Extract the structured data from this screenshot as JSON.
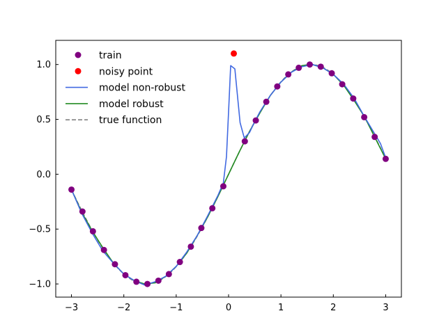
{
  "chart_data": {
    "type": "scatter",
    "title": "",
    "xlabel": "",
    "ylabel": "",
    "xlim": [
      -3.3,
      3.3
    ],
    "ylim": [
      -1.12,
      1.22
    ],
    "xticks": [
      -3,
      -2,
      -1,
      0,
      1,
      2,
      3
    ],
    "yticks": [
      -1.0,
      -0.5,
      0.0,
      0.5,
      1.0
    ],
    "xtick_labels": [
      "−3",
      "−2",
      "−1",
      "0",
      "1",
      "2",
      "3"
    ],
    "ytick_labels": [
      "−1.0",
      "−0.5",
      "0.0",
      "0.5",
      "1.0"
    ],
    "legend_position": "upper-left",
    "legend": [
      {
        "label": "train",
        "kind": "marker",
        "color": "#800080"
      },
      {
        "label": "noisy point",
        "kind": "marker",
        "color": "#ff0000"
      },
      {
        "label": "model non-robust",
        "kind": "line",
        "color": "#4169e1",
        "dash": "solid"
      },
      {
        "label": "model robust",
        "kind": "line",
        "color": "#228b22",
        "dash": "solid"
      },
      {
        "label": "true function",
        "kind": "line",
        "color": "#808080",
        "dash": "dashed"
      }
    ],
    "series": [
      {
        "name": "train",
        "kind": "scatter",
        "color": "#800080",
        "points": [
          [
            -3.0,
            -0.14
          ],
          [
            -2.79,
            -0.34
          ],
          [
            -2.59,
            -0.52
          ],
          [
            -2.38,
            -0.69
          ],
          [
            -2.17,
            -0.82
          ],
          [
            -1.97,
            -0.92
          ],
          [
            -1.76,
            -0.98
          ],
          [
            -1.55,
            -1.0
          ],
          [
            -1.34,
            -0.97
          ],
          [
            -1.14,
            -0.91
          ],
          [
            -0.93,
            -0.8
          ],
          [
            -0.72,
            -0.66
          ],
          [
            -0.52,
            -0.49
          ],
          [
            -0.31,
            -0.31
          ],
          [
            -0.1,
            -0.11
          ],
          [
            0.31,
            0.3
          ],
          [
            0.52,
            0.49
          ],
          [
            0.72,
            0.66
          ],
          [
            0.93,
            0.8
          ],
          [
            1.14,
            0.91
          ],
          [
            1.34,
            0.97
          ],
          [
            1.55,
            1.0
          ],
          [
            1.76,
            0.98
          ],
          [
            1.97,
            0.92
          ],
          [
            2.17,
            0.82
          ],
          [
            2.38,
            0.69
          ],
          [
            2.59,
            0.52
          ],
          [
            2.79,
            0.34
          ],
          [
            3.0,
            0.14
          ]
        ]
      },
      {
        "name": "noisy point",
        "kind": "scatter",
        "color": "#ff0000",
        "points": [
          [
            0.1,
            1.1
          ]
        ]
      },
      {
        "name": "model non-robust",
        "kind": "line",
        "color": "#4169e1",
        "points": [
          [
            -3.0,
            -0.14
          ],
          [
            -2.8,
            -0.36
          ],
          [
            -2.6,
            -0.54
          ],
          [
            -2.4,
            -0.7
          ],
          [
            -2.2,
            -0.81
          ],
          [
            -2.0,
            -0.91
          ],
          [
            -1.8,
            -0.97
          ],
          [
            -1.6,
            -1.01
          ],
          [
            -1.4,
            -0.98
          ],
          [
            -1.2,
            -0.93
          ],
          [
            -1.0,
            -0.84
          ],
          [
            -0.8,
            -0.71
          ],
          [
            -0.6,
            -0.56
          ],
          [
            -0.4,
            -0.38
          ],
          [
            -0.2,
            -0.19
          ],
          [
            -0.1,
            -0.08
          ],
          [
            -0.04,
            0.16
          ],
          [
            0.0,
            0.57
          ],
          [
            0.04,
            0.99
          ],
          [
            0.12,
            0.96
          ],
          [
            0.22,
            0.47
          ],
          [
            0.3,
            0.33
          ],
          [
            0.4,
            0.38
          ],
          [
            0.5,
            0.48
          ],
          [
            0.6,
            0.57
          ],
          [
            0.8,
            0.72
          ],
          [
            1.0,
            0.84
          ],
          [
            1.2,
            0.93
          ],
          [
            1.4,
            0.98
          ],
          [
            1.6,
            1.0
          ],
          [
            1.8,
            0.97
          ],
          [
            2.0,
            0.91
          ],
          [
            2.2,
            0.82
          ],
          [
            2.4,
            0.69
          ],
          [
            2.6,
            0.52
          ],
          [
            2.8,
            0.36
          ],
          [
            2.9,
            0.28
          ],
          [
            3.0,
            0.15
          ]
        ]
      },
      {
        "name": "model robust",
        "kind": "line",
        "color": "#228b22",
        "points": [
          [
            -3.0,
            -0.14
          ],
          [
            -2.8,
            -0.35
          ],
          [
            -2.6,
            -0.52
          ],
          [
            -2.4,
            -0.67
          ],
          [
            -2.2,
            -0.81
          ],
          [
            -2.0,
            -0.91
          ],
          [
            -1.8,
            -0.97
          ],
          [
            -1.6,
            -1.0
          ],
          [
            -1.4,
            -0.99
          ],
          [
            -1.2,
            -0.93
          ],
          [
            -1.0,
            -0.84
          ],
          [
            -0.8,
            -0.72
          ],
          [
            -0.6,
            -0.56
          ],
          [
            -0.4,
            -0.39
          ],
          [
            -0.2,
            -0.2
          ],
          [
            0.0,
            0.0
          ],
          [
            0.2,
            0.2
          ],
          [
            0.4,
            0.39
          ],
          [
            0.6,
            0.56
          ],
          [
            0.8,
            0.72
          ],
          [
            1.0,
            0.84
          ],
          [
            1.2,
            0.93
          ],
          [
            1.4,
            0.99
          ],
          [
            1.6,
            1.0
          ],
          [
            1.8,
            0.97
          ],
          [
            2.0,
            0.91
          ],
          [
            2.2,
            0.81
          ],
          [
            2.4,
            0.67
          ],
          [
            2.6,
            0.52
          ],
          [
            2.8,
            0.33
          ],
          [
            3.0,
            0.14
          ]
        ]
      },
      {
        "name": "true function",
        "kind": "line",
        "color": "#808080",
        "dash": "dashed",
        "function": "sin(x)",
        "x_range": [
          -3.0,
          3.0
        ]
      }
    ]
  }
}
